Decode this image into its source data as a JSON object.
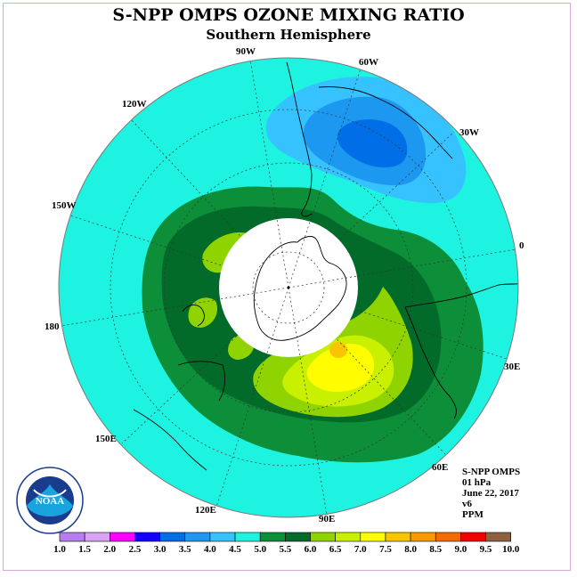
{
  "title": "S-NPP OMPS OZONE MIXING RATIO",
  "subtitle": "Southern Hemisphere",
  "longitude_labels": [
    "90W",
    "60W",
    "30W",
    "0",
    "30E",
    "60E",
    "90E",
    "120E",
    "150E",
    "180",
    "150W",
    "120W"
  ],
  "info": {
    "product": "S-NPP OMPS",
    "level": "01 hPa",
    "date": "June 22, 2017",
    "version": "v6",
    "units": "PPM"
  },
  "logo": {
    "text": "NOAA",
    "icon": "noaa-logo"
  },
  "colorbar": {
    "ticks": [
      "1.0",
      "1.5",
      "2.0",
      "2.5",
      "3.0",
      "3.5",
      "4.0",
      "4.5",
      "5.0",
      "5.5",
      "6.0",
      "6.5",
      "7.0",
      "7.5",
      "8.0",
      "8.5",
      "9.0",
      "9.5",
      "10.0"
    ],
    "colors": [
      "#b67cf0",
      "#d9a2f2",
      "#ff00ff",
      "#1500ff",
      "#006ee6",
      "#1d98f0",
      "#36c2ff",
      "#1ef2e0",
      "#0c8f38",
      "#026b2a",
      "#8fd400",
      "#c8f000",
      "#fffd00",
      "#f8c500",
      "#f89a00",
      "#f56a00",
      "#f20000",
      "#8e6040"
    ]
  },
  "palette": {
    "ocean": "#1ef2e0",
    "blue_light": "#36c2ff",
    "blue_mid": "#1d98f0",
    "blue_dark": "#006ee6",
    "green_mid": "#0c8f38",
    "green_dark": "#026b2a",
    "yellowgreen": "#8fd400",
    "lime": "#c8f000",
    "yellow": "#fffd00",
    "orange": "#f8c500",
    "pole_mask": "#ffffff"
  }
}
